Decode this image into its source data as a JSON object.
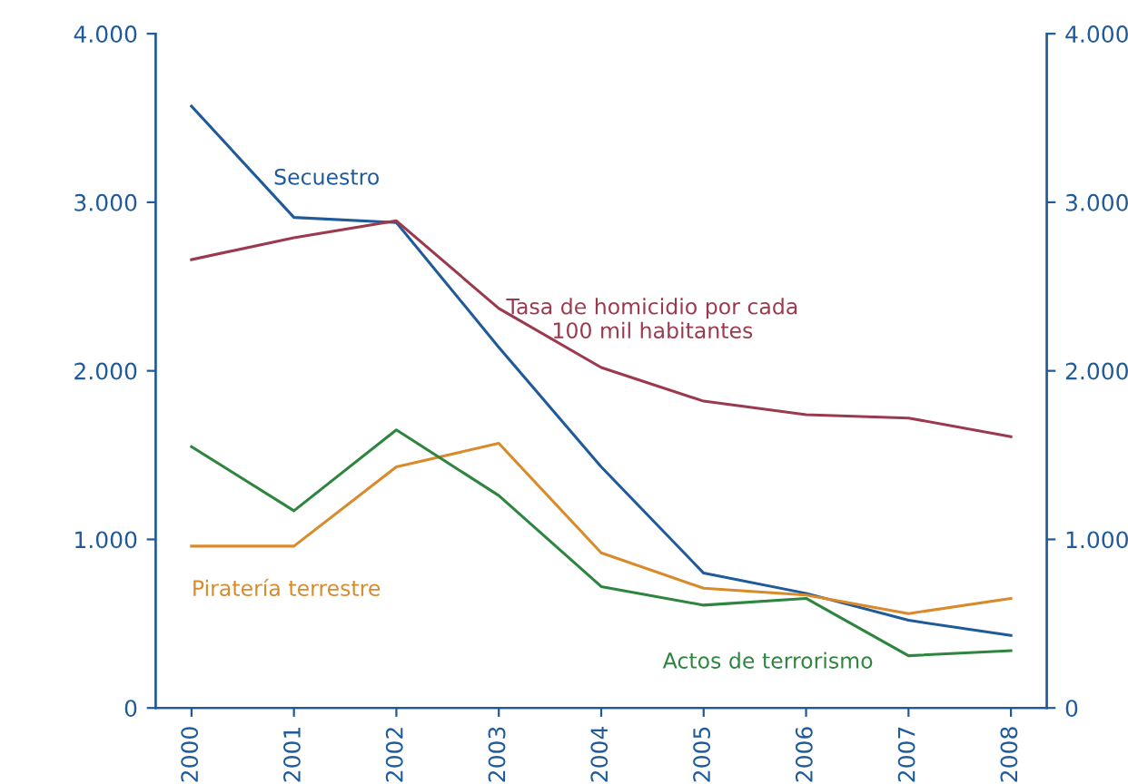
{
  "chart_data": {
    "type": "line",
    "categories": [
      "2000",
      "2001",
      "2002",
      "2003",
      "2004",
      "2005",
      "2006",
      "2007",
      "2008"
    ],
    "series": [
      {
        "name": "Secuestro",
        "color": "#1f5a9a",
        "values": [
          3570,
          2910,
          2880,
          2140,
          1430,
          800,
          680,
          520,
          430
        ]
      },
      {
        "name": "Tasa de homicidio por cada\n100 mil habitantes",
        "color": "#9b3a4e",
        "values": [
          2660,
          2790,
          2890,
          2370,
          2020,
          1820,
          1740,
          1720,
          1610
        ]
      },
      {
        "name": "Piratería terrestre",
        "color": "#d98a2b",
        "values": [
          960,
          960,
          1430,
          1570,
          920,
          710,
          670,
          560,
          650
        ]
      },
      {
        "name": "Actos de terrorismo",
        "color": "#2e8540",
        "values": [
          1550,
          1170,
          1650,
          1260,
          720,
          610,
          650,
          310,
          340
        ]
      }
    ],
    "ylim": [
      0,
      4000
    ],
    "yticks": [
      {
        "value": 0,
        "label": "0"
      },
      {
        "value": 1000,
        "label": "1.000"
      },
      {
        "value": 2000,
        "label": "2.000"
      },
      {
        "value": 3000,
        "label": "3.000"
      },
      {
        "value": 4000,
        "label": "4.000"
      }
    ],
    "y2lim": [
      0,
      4000
    ],
    "y2ticks": [
      {
        "value": 0,
        "label": "0"
      },
      {
        "value": 1000,
        "label": "1.000"
      },
      {
        "value": 2000,
        "label": "2.000"
      },
      {
        "value": 3000,
        "label": "3.000"
      },
      {
        "value": 4000,
        "label": "4.000"
      }
    ],
    "grid": false,
    "marker": "none",
    "line_style": "solid",
    "legend": false
  }
}
